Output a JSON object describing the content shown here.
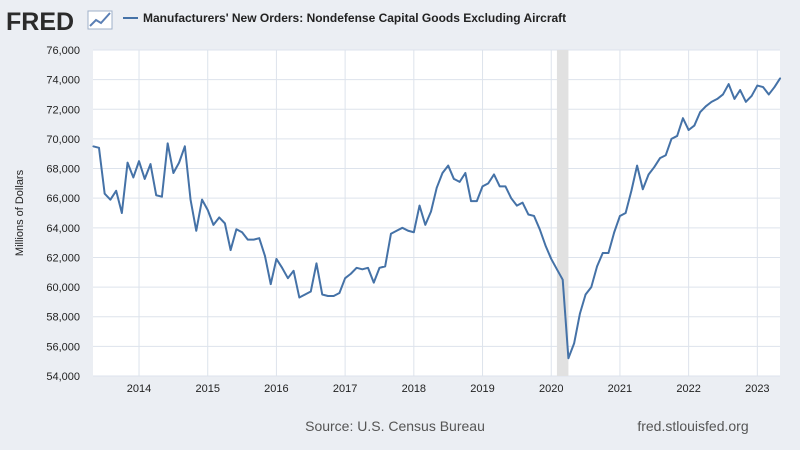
{
  "logo": {
    "text": "FRED"
  },
  "legend": {
    "label": "Manufacturers' New Orders: Nondefense Capital Goods Excluding Aircraft"
  },
  "footer": {
    "source": "Source: U.S. Census Bureau",
    "site": "fred.stlouisfed.org"
  },
  "colors": {
    "line": "#4572a7",
    "recession": "#e1e1e1",
    "grid": "#dde3ec",
    "plot_bg": "#ffffff",
    "page_bg": "#ebeef3"
  },
  "chart_data": {
    "type": "line",
    "title": "",
    "xlabel": "",
    "ylabel": "Millions of Dollars",
    "ylim": [
      54000,
      76000
    ],
    "xlim": [
      2013.33,
      2023.33
    ],
    "yticks": [
      54000,
      56000,
      58000,
      60000,
      62000,
      64000,
      66000,
      68000,
      70000,
      72000,
      74000,
      76000
    ],
    "ytick_labels": [
      "54,000",
      "56,000",
      "58,000",
      "60,000",
      "62,000",
      "64,000",
      "66,000",
      "68,000",
      "70,000",
      "72,000",
      "74,000",
      "76,000"
    ],
    "xticks": [
      2014,
      2015,
      2016,
      2017,
      2018,
      2019,
      2020,
      2021,
      2022,
      2023
    ],
    "xtick_labels": [
      "2014",
      "2015",
      "2016",
      "2017",
      "2018",
      "2019",
      "2020",
      "2021",
      "2022",
      "2023"
    ],
    "grid": true,
    "legend_position": "top",
    "recession": {
      "start": 2020.083,
      "end": 2020.25
    },
    "series": [
      {
        "name": "Manufacturers' New Orders: Nondefense Capital Goods Excluding Aircraft",
        "x": [
          2013.333,
          2013.417,
          2013.5,
          2013.583,
          2013.667,
          2013.75,
          2013.833,
          2013.917,
          2014.0,
          2014.083,
          2014.167,
          2014.25,
          2014.333,
          2014.417,
          2014.5,
          2014.583,
          2014.667,
          2014.75,
          2014.833,
          2014.917,
          2015.0,
          2015.083,
          2015.167,
          2015.25,
          2015.333,
          2015.417,
          2015.5,
          2015.583,
          2015.667,
          2015.75,
          2015.833,
          2015.917,
          2016.0,
          2016.083,
          2016.167,
          2016.25,
          2016.333,
          2016.417,
          2016.5,
          2016.583,
          2016.667,
          2016.75,
          2016.833,
          2016.917,
          2017.0,
          2017.083,
          2017.167,
          2017.25,
          2017.333,
          2017.417,
          2017.5,
          2017.583,
          2017.667,
          2017.75,
          2017.833,
          2017.917,
          2018.0,
          2018.083,
          2018.167,
          2018.25,
          2018.333,
          2018.417,
          2018.5,
          2018.583,
          2018.667,
          2018.75,
          2018.833,
          2018.917,
          2019.0,
          2019.083,
          2019.167,
          2019.25,
          2019.333,
          2019.417,
          2019.5,
          2019.583,
          2019.667,
          2019.75,
          2019.833,
          2019.917,
          2020.0,
          2020.083,
          2020.167,
          2020.25,
          2020.333,
          2020.417,
          2020.5,
          2020.583,
          2020.667,
          2020.75,
          2020.833,
          2020.917,
          2021.0,
          2021.083,
          2021.167,
          2021.25,
          2021.333,
          2021.417,
          2021.5,
          2021.583,
          2021.667,
          2021.75,
          2021.833,
          2021.917,
          2022.0,
          2022.083,
          2022.167,
          2022.25,
          2022.333,
          2022.417,
          2022.5,
          2022.583,
          2022.667,
          2022.75,
          2022.833,
          2022.917,
          2023.0,
          2023.083,
          2023.167,
          2023.25,
          2023.333
        ],
        "values": [
          69500,
          69400,
          66300,
          65900,
          66500,
          65000,
          68400,
          67400,
          68500,
          67300,
          68300,
          66200,
          66100,
          69700,
          67700,
          68400,
          69500,
          65900,
          63800,
          65900,
          65200,
          64200,
          64700,
          64300,
          62500,
          63900,
          63700,
          63200,
          63200,
          63300,
          62100,
          60200,
          61900,
          61300,
          60600,
          61100,
          59300,
          59500,
          59700,
          61600,
          59500,
          59400,
          59400,
          59600,
          60600,
          60900,
          61300,
          61200,
          61300,
          60300,
          61300,
          61400,
          63600,
          63800,
          64000,
          63800,
          63700,
          65500,
          64200,
          65100,
          66700,
          67700,
          68200,
          67300,
          67100,
          67700,
          65800,
          65800,
          66800,
          67000,
          67600,
          66800,
          66800,
          66000,
          65500,
          65700,
          64900,
          64800,
          63900,
          62800,
          61900,
          61200,
          60500,
          55200,
          56200,
          58200,
          59500,
          60000,
          61400,
          62300,
          62300,
          63700,
          64800,
          65000,
          66500,
          68200,
          66600,
          67600,
          68100,
          68700,
          68900,
          70000,
          70200,
          71400,
          70600,
          70900,
          71800,
          72200,
          72500,
          72700,
          73000,
          73700,
          72700,
          73300,
          72500,
          72900,
          73600,
          73500,
          73000,
          73500,
          74100
        ]
      }
    ]
  }
}
